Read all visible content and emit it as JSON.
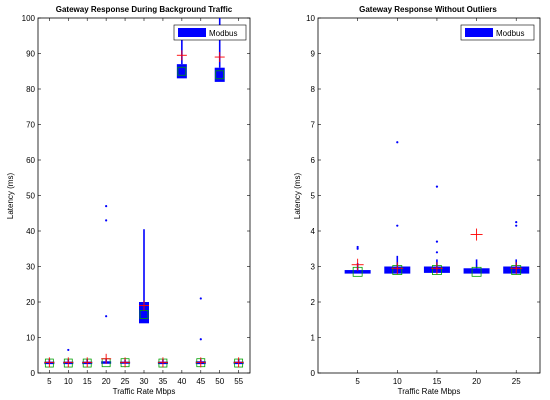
{
  "colors": {
    "box": "#0000ff",
    "mean": "#ff0000",
    "median_marker": "#00a000",
    "axis": "#000000",
    "background": "#ffffff"
  },
  "chart_data": [
    {
      "type": "box",
      "title": "Gateway Response During Background Traffic",
      "xlabel": "Traffic Rate Mbps",
      "ylabel": "Latency (ms)",
      "xlim": [
        2,
        58
      ],
      "ylim": [
        0,
        100
      ],
      "xticks": [
        "5",
        "10",
        "15",
        "20",
        "25",
        "30",
        "35",
        "40",
        "45",
        "50",
        "55"
      ],
      "yticks": [
        "0",
        "10",
        "20",
        "30",
        "40",
        "50",
        "60",
        "70",
        "80",
        "90",
        "100"
      ],
      "legend": {
        "label": "Modbus",
        "position": "top-right"
      },
      "series": [
        {
          "x": 5,
          "median": 2.8,
          "q1": 2.5,
          "q3": 3.2,
          "mean": 3.0,
          "whisker_high": 3.8,
          "outliers": []
        },
        {
          "x": 10,
          "median": 2.8,
          "q1": 2.5,
          "q3": 3.2,
          "mean": 3.0,
          "whisker_high": 3.8,
          "outliers": [
            6.5
          ]
        },
        {
          "x": 15,
          "median": 2.8,
          "q1": 2.5,
          "q3": 3.2,
          "mean": 3.0,
          "whisker_high": 3.8,
          "outliers": []
        },
        {
          "x": 20,
          "median": 2.9,
          "q1": 2.6,
          "q3": 3.3,
          "mean": 4.0,
          "whisker_high": 4.0,
          "outliers": [
            16,
            43,
            47
          ]
        },
        {
          "x": 25,
          "median": 2.9,
          "q1": 2.6,
          "q3": 3.2,
          "mean": 3.0,
          "whisker_high": 3.8,
          "outliers": []
        },
        {
          "x": 30,
          "median": 16.5,
          "q1": 14.0,
          "q3": 20.0,
          "mean": 19.0,
          "whisker_high": 40.5,
          "outliers": []
        },
        {
          "x": 35,
          "median": 2.8,
          "q1": 2.5,
          "q3": 3.2,
          "mean": 3.0,
          "whisker_high": 3.8,
          "outliers": []
        },
        {
          "x": 40,
          "median": 85.0,
          "q1": 83.0,
          "q3": 87.0,
          "mean": 89.5,
          "whisker_high": 98.0,
          "outliers": []
        },
        {
          "x": 45,
          "median": 2.9,
          "q1": 2.5,
          "q3": 3.3,
          "mean": 3.0,
          "whisker_high": 3.8,
          "outliers": [
            9.5,
            21
          ]
        },
        {
          "x": 50,
          "median": 84.0,
          "q1": 82.0,
          "q3": 86.0,
          "mean": 89.0,
          "whisker_high": 100.0,
          "outliers": []
        },
        {
          "x": 55,
          "median": 2.8,
          "q1": 2.5,
          "q3": 3.2,
          "mean": 3.0,
          "whisker_high": 3.8,
          "outliers": []
        }
      ]
    },
    {
      "type": "box",
      "title": "Gateway Response Without Outliers",
      "xlabel": "Traffic Rate Mbps",
      "ylabel": "Latency (ms)",
      "xlim": [
        0,
        28
      ],
      "ylim": [
        0,
        10
      ],
      "xticks": [
        "5",
        "10",
        "15",
        "20",
        "25"
      ],
      "yticks": [
        "0",
        "1",
        "2",
        "3",
        "4",
        "5",
        "6",
        "7",
        "8",
        "9",
        "10"
      ],
      "legend": {
        "label": "Modbus",
        "position": "top-right"
      },
      "series": [
        {
          "x": 5,
          "median": 2.85,
          "q1": 2.8,
          "q3": 2.9,
          "mean": 3.05,
          "whisker_high": 3.1,
          "outliers": [
            3.5,
            3.55
          ]
        },
        {
          "x": 10,
          "median": 2.9,
          "q1": 2.8,
          "q3": 3.0,
          "mean": 2.95,
          "whisker_high": 3.3,
          "outliers": [
            4.15,
            6.5
          ]
        },
        {
          "x": 15,
          "median": 2.9,
          "q1": 2.82,
          "q3": 3.0,
          "mean": 2.95,
          "whisker_high": 3.2,
          "outliers": [
            3.4,
            3.7,
            5.25
          ]
        },
        {
          "x": 20,
          "median": 2.85,
          "q1": 2.8,
          "q3": 2.95,
          "mean": 3.9,
          "whisker_high": 3.2,
          "outliers": []
        },
        {
          "x": 25,
          "median": 2.9,
          "q1": 2.8,
          "q3": 3.0,
          "mean": 2.95,
          "whisker_high": 3.2,
          "outliers": [
            4.15,
            4.25
          ]
        }
      ]
    }
  ]
}
